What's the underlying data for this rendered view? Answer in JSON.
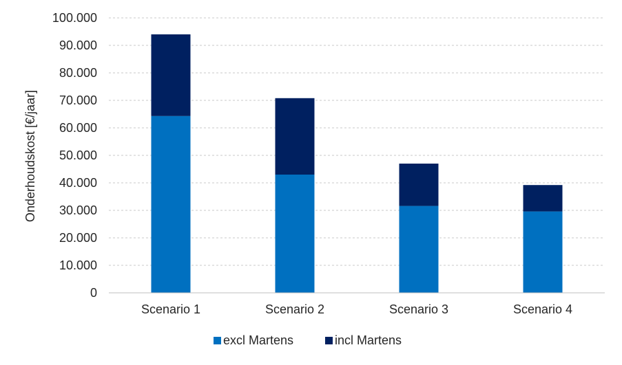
{
  "chart_data": {
    "type": "bar",
    "stacked": true,
    "categories": [
      "Scenario 1",
      "Scenario 2",
      "Scenario 3",
      "Scenario 4"
    ],
    "series": [
      {
        "name": "excl Martens",
        "color": "#0070c0",
        "values": [
          64300,
          43000,
          31600,
          29600
        ]
      },
      {
        "name": "incl Martens",
        "color": "#002060",
        "values": [
          29700,
          27800,
          15400,
          9600
        ]
      }
    ],
    "ylabel": "Onderhoudskost [€/jaar]",
    "ylim": [
      0,
      100000
    ],
    "yticks": [
      0,
      10000,
      20000,
      30000,
      40000,
      50000,
      60000,
      70000,
      80000,
      90000,
      100000
    ],
    "ytick_labels": [
      "0",
      "10.000",
      "20.000",
      "30.000",
      "40.000",
      "50.000",
      "60.000",
      "70.000",
      "80.000",
      "90.000",
      "100.000"
    ],
    "grid": true,
    "legend": "bottom"
  }
}
